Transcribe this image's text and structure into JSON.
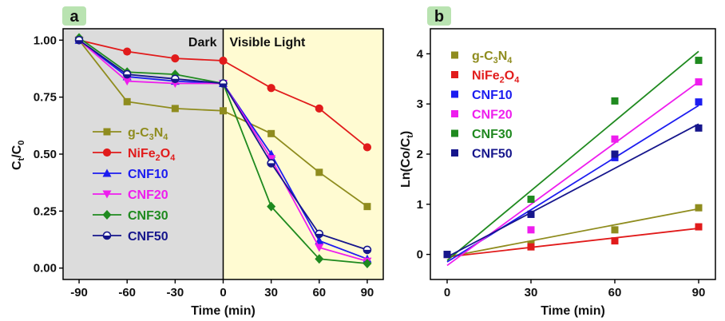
{
  "chart_data": [
    {
      "panel": "a",
      "type": "line",
      "xlabel": "Time (min)",
      "ylabel_main": "C",
      "ylabel_sub1": "t",
      "ylabel_mid": "/C",
      "ylabel_sub2": "0",
      "xlim": [
        -100,
        100
      ],
      "ylim": [
        -0.05,
        1.05
      ],
      "xticks": [
        -90,
        -60,
        -30,
        0,
        30,
        60,
        90
      ],
      "yticks": [
        0.0,
        0.25,
        0.5,
        0.75,
        1.0
      ],
      "ytick_labels": [
        "0.00",
        "0.25",
        "0.50",
        "0.75",
        "1.00"
      ],
      "regions": [
        {
          "label": "Dark",
          "from": -100,
          "to": 0,
          "color": "#dcdcdc"
        },
        {
          "label": "Visible Light",
          "from": 0,
          "to": 100,
          "color": "#fffbd2"
        }
      ],
      "x": [
        -90,
        -60,
        -30,
        0,
        30,
        60,
        90
      ],
      "series": [
        {
          "name": "g-C3N4",
          "legend_main": "g-C",
          "legend_sub1": "3",
          "legend_mid": "N",
          "legend_sub2": "4",
          "color": "#8f8c1e",
          "marker": "square",
          "values": [
            1.0,
            0.73,
            0.7,
            0.69,
            0.59,
            0.42,
            0.27
          ]
        },
        {
          "name": "NiFe2O4",
          "legend_main": "NiFe",
          "legend_sub1": "2",
          "legend_mid": "O",
          "legend_sub2": "4",
          "color": "#e11b1b",
          "marker": "circle",
          "values": [
            1.0,
            0.95,
            0.92,
            0.91,
            0.79,
            0.7,
            0.53
          ]
        },
        {
          "name": "CNF10",
          "legend_main": "CNF10",
          "color": "#1c1cf0",
          "marker": "triangle-up",
          "values": [
            1.0,
            0.84,
            0.82,
            0.81,
            0.5,
            0.12,
            0.04
          ]
        },
        {
          "name": "CNF20",
          "legend_main": "CNF20",
          "color": "#ee1dee",
          "marker": "triangle-down",
          "values": [
            1.0,
            0.82,
            0.81,
            0.81,
            0.48,
            0.09,
            0.03
          ]
        },
        {
          "name": "CNF30",
          "legend_main": "CNF30",
          "color": "#1f8a1f",
          "marker": "diamond",
          "values": [
            1.01,
            0.86,
            0.85,
            0.81,
            0.27,
            0.04,
            0.02
          ]
        },
        {
          "name": "CNF50",
          "legend_main": "CNF50",
          "color": "#16168c",
          "marker": "half-circle",
          "values": [
            1.0,
            0.85,
            0.83,
            0.81,
            0.46,
            0.15,
            0.08
          ]
        }
      ]
    },
    {
      "panel": "b",
      "type": "scatter",
      "xlabel": "Time (min)",
      "ylabel": "Ln(Co/C",
      "ylabel_sub": "t",
      "ylabel_end": ")",
      "xlim": [
        -6,
        96
      ],
      "ylim": [
        -0.5,
        4.5
      ],
      "xticks": [
        0,
        30,
        60,
        90
      ],
      "yticks": [
        0,
        1,
        2,
        3,
        4
      ],
      "x": [
        0,
        30,
        60,
        90
      ],
      "series": [
        {
          "name": "g-C3N4",
          "legend_main": "g-C",
          "legend_sub1": "3",
          "legend_mid": "N",
          "legend_sub2": "4",
          "color": "#8f8c1e",
          "values": [
            0.0,
            0.2,
            0.49,
            0.93
          ],
          "fit": [
            -0.05,
            0.91
          ]
        },
        {
          "name": "NiFe2O4",
          "legend_main": "NiFe",
          "legend_sub1": "2",
          "legend_mid": "O",
          "legend_sub2": "4",
          "color": "#e11b1b",
          "values": [
            0.0,
            0.15,
            0.27,
            0.55
          ],
          "fit": [
            -0.05,
            0.52
          ]
        },
        {
          "name": "CNF10",
          "legend_main": "CNF10",
          "color": "#1c1cf0",
          "values": [
            0.0,
            0.8,
            1.93,
            3.04
          ],
          "fit": [
            -0.15,
            2.97
          ]
        },
        {
          "name": "CNF20",
          "legend_main": "CNF20",
          "color": "#ee1dee",
          "values": [
            0.0,
            0.49,
            2.3,
            3.44
          ],
          "fit": [
            -0.22,
            3.44
          ]
        },
        {
          "name": "CNF30",
          "legend_main": "CNF30",
          "color": "#1f8a1f",
          "values": [
            0.0,
            1.1,
            3.06,
            3.87
          ],
          "fit": [
            -0.12,
            4.05
          ]
        },
        {
          "name": "CNF50",
          "legend_main": "CNF50",
          "color": "#16168c",
          "values": [
            0.0,
            0.8,
            2.0,
            2.52
          ],
          "fit": [
            -0.05,
            2.6
          ]
        }
      ]
    }
  ]
}
